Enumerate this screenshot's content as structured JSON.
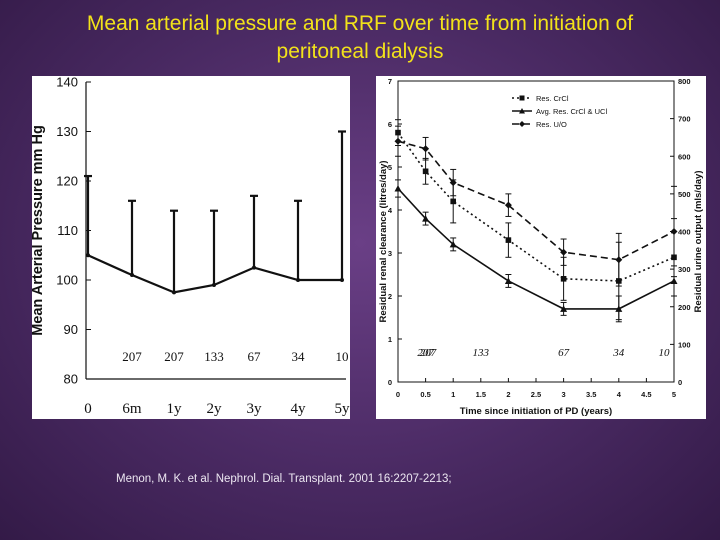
{
  "title_line1": "Mean arterial pressure and RRF over time from initiation of",
  "title_line2": "peritoneal dialysis",
  "citation": "Menon, M. K. et al. Nephrol. Dial. Transplant. 2001 16:2207-2213;",
  "colors": {
    "background": "#4a2a63",
    "title": "#f2e21a",
    "citation": "#ece6f1",
    "panel": "#ffffff",
    "ink": "#111111"
  },
  "chart_data": [
    {
      "type": "line",
      "ylabel": "Mean Arterial Pressure mm Hg",
      "categories": [
        "0",
        "6m",
        "1y",
        "2y",
        "3y",
        "4y",
        "5y"
      ],
      "yticks": [
        "140",
        "130",
        "120",
        "110",
        "100",
        "90",
        "80"
      ],
      "ylim": [
        80,
        140
      ],
      "series": [
        {
          "values": [
            105,
            101,
            97.5,
            99,
            102.5,
            100,
            100
          ],
          "error_upper": [
            121,
            116,
            114,
            114,
            117,
            116,
            130
          ]
        }
      ],
      "n_labels": [
        "207",
        "207",
        "133",
        "67",
        "34",
        "10"
      ],
      "grid": false
    },
    {
      "type": "line",
      "xlabel": "Time since initiation of PD (years)",
      "ylabel": "Residual renal clearance (litres/day)",
      "y2label": "Residual urine output (mls/day)",
      "xticks": [
        "0",
        "0.5",
        "1",
        "1.5",
        "2",
        "2.5",
        "3",
        "3.5",
        "4",
        "4.5",
        "5"
      ],
      "yticks": [
        "0",
        "1",
        "2",
        "3",
        "4",
        "5",
        "6",
        "7"
      ],
      "y2ticks": [
        "0",
        "100",
        "200",
        "300",
        "400",
        "500",
        "600",
        "700",
        "800"
      ],
      "xlim": [
        0,
        5
      ],
      "ylim": [
        0,
        7
      ],
      "y2lim": [
        0,
        800
      ],
      "n_labels": [
        "207",
        "207",
        "133",
        "67",
        "34",
        "10"
      ],
      "legend": [
        "Res. CrCl",
        "Avg. Res. CrCl & UCl",
        "Res. U/O"
      ],
      "legend_position": "top-left",
      "series": [
        {
          "name": "Res. CrCl",
          "x": [
            0,
            0.5,
            1,
            2,
            3,
            4,
            5
          ],
          "values": [
            5.8,
            4.9,
            4.2,
            3.3,
            2.4,
            2.35,
            2.9
          ],
          "axis": "left",
          "style": "dotted",
          "marker": "square"
        },
        {
          "name": "Avg. Res. CrCl & UCl",
          "x": [
            0,
            0.5,
            1,
            2,
            3,
            4,
            5
          ],
          "values": [
            4.5,
            3.8,
            3.2,
            2.35,
            1.7,
            1.7,
            2.35
          ],
          "axis": "left",
          "style": "solid",
          "marker": "triangle"
        },
        {
          "name": "Res. U/O",
          "x": [
            0,
            0.5,
            1,
            2,
            3,
            4,
            5
          ],
          "values": [
            640,
            620,
            530,
            470,
            345,
            325,
            400
          ],
          "axis": "right",
          "style": "dashed",
          "marker": "diamond"
        }
      ],
      "grid": false
    }
  ]
}
